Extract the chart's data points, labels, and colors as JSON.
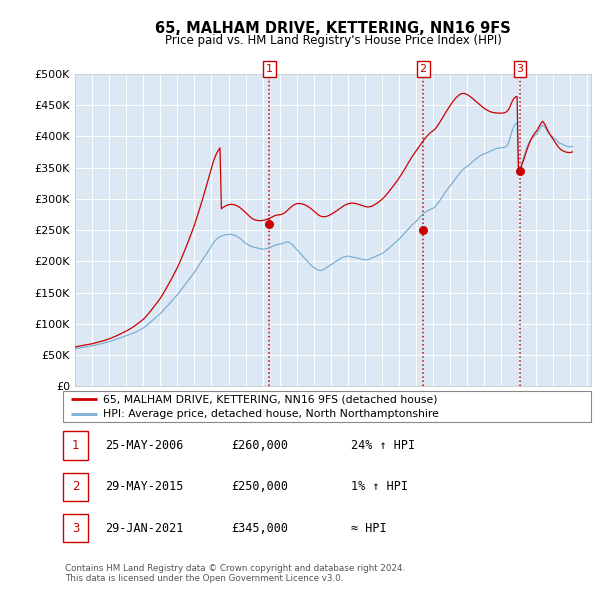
{
  "title": "65, MALHAM DRIVE, KETTERING, NN16 9FS",
  "subtitle": "Price paid vs. HM Land Registry's House Price Index (HPI)",
  "plot_bg_color": "#dce9f5",
  "ylim": [
    0,
    500000
  ],
  "yticks": [
    0,
    50000,
    100000,
    150000,
    200000,
    250000,
    300000,
    350000,
    400000,
    450000,
    500000
  ],
  "sale_dates_float": [
    2006.389,
    2015.411,
    2021.075
  ],
  "sale_prices": [
    260000,
    250000,
    345000
  ],
  "sale_labels": [
    "1",
    "2",
    "3"
  ],
  "vline_color": "#cc0000",
  "sale_color": "#cc0000",
  "hpi_color": "#7bafd4",
  "legend_sale_label": "65, MALHAM DRIVE, KETTERING, NN16 9FS (detached house)",
  "legend_hpi_label": "HPI: Average price, detached house, North Northamptonshire",
  "table_data": [
    [
      "1",
      "25-MAY-2006",
      "£260,000",
      "24% ↑ HPI"
    ],
    [
      "2",
      "29-MAY-2015",
      "£250,000",
      "1% ↑ HPI"
    ],
    [
      "3",
      "29-JAN-2021",
      "£345,000",
      "≈ HPI"
    ]
  ],
  "footer": "Contains HM Land Registry data © Crown copyright and database right 2024.\nThis data is licensed under the Open Government Licence v3.0.",
  "hpi_x": [
    1995.0,
    1995.083,
    1995.167,
    1995.25,
    1995.333,
    1995.417,
    1995.5,
    1995.583,
    1995.667,
    1995.75,
    1995.833,
    1995.917,
    1996.0,
    1996.083,
    1996.167,
    1996.25,
    1996.333,
    1996.417,
    1996.5,
    1996.583,
    1996.667,
    1996.75,
    1996.833,
    1996.917,
    1997.0,
    1997.083,
    1997.167,
    1997.25,
    1997.333,
    1997.417,
    1997.5,
    1997.583,
    1997.667,
    1997.75,
    1997.833,
    1997.917,
    1998.0,
    1998.083,
    1998.167,
    1998.25,
    1998.333,
    1998.417,
    1998.5,
    1998.583,
    1998.667,
    1998.75,
    1998.833,
    1998.917,
    1999.0,
    1999.083,
    1999.167,
    1999.25,
    1999.333,
    1999.417,
    1999.5,
    1999.583,
    1999.667,
    1999.75,
    1999.833,
    1999.917,
    2000.0,
    2000.083,
    2000.167,
    2000.25,
    2000.333,
    2000.417,
    2000.5,
    2000.583,
    2000.667,
    2000.75,
    2000.833,
    2000.917,
    2001.0,
    2001.083,
    2001.167,
    2001.25,
    2001.333,
    2001.417,
    2001.5,
    2001.583,
    2001.667,
    2001.75,
    2001.833,
    2001.917,
    2002.0,
    2002.083,
    2002.167,
    2002.25,
    2002.333,
    2002.417,
    2002.5,
    2002.583,
    2002.667,
    2002.75,
    2002.833,
    2002.917,
    2003.0,
    2003.083,
    2003.167,
    2003.25,
    2003.333,
    2003.417,
    2003.5,
    2003.583,
    2003.667,
    2003.75,
    2003.833,
    2003.917,
    2004.0,
    2004.083,
    2004.167,
    2004.25,
    2004.333,
    2004.417,
    2004.5,
    2004.583,
    2004.667,
    2004.75,
    2004.833,
    2004.917,
    2005.0,
    2005.083,
    2005.167,
    2005.25,
    2005.333,
    2005.417,
    2005.5,
    2005.583,
    2005.667,
    2005.75,
    2005.833,
    2005.917,
    2006.0,
    2006.083,
    2006.167,
    2006.25,
    2006.333,
    2006.417,
    2006.5,
    2006.583,
    2006.667,
    2006.75,
    2006.833,
    2006.917,
    2007.0,
    2007.083,
    2007.167,
    2007.25,
    2007.333,
    2007.417,
    2007.5,
    2007.583,
    2007.667,
    2007.75,
    2007.833,
    2007.917,
    2008.0,
    2008.083,
    2008.167,
    2008.25,
    2008.333,
    2008.417,
    2008.5,
    2008.583,
    2008.667,
    2008.75,
    2008.833,
    2008.917,
    2009.0,
    2009.083,
    2009.167,
    2009.25,
    2009.333,
    2009.417,
    2009.5,
    2009.583,
    2009.667,
    2009.75,
    2009.833,
    2009.917,
    2010.0,
    2010.083,
    2010.167,
    2010.25,
    2010.333,
    2010.417,
    2010.5,
    2010.583,
    2010.667,
    2010.75,
    2010.833,
    2010.917,
    2011.0,
    2011.083,
    2011.167,
    2011.25,
    2011.333,
    2011.417,
    2011.5,
    2011.583,
    2011.667,
    2011.75,
    2011.833,
    2011.917,
    2012.0,
    2012.083,
    2012.167,
    2012.25,
    2012.333,
    2012.417,
    2012.5,
    2012.583,
    2012.667,
    2012.75,
    2012.833,
    2012.917,
    2013.0,
    2013.083,
    2013.167,
    2013.25,
    2013.333,
    2013.417,
    2013.5,
    2013.583,
    2013.667,
    2013.75,
    2013.833,
    2013.917,
    2014.0,
    2014.083,
    2014.167,
    2014.25,
    2014.333,
    2014.417,
    2014.5,
    2014.583,
    2014.667,
    2014.75,
    2014.833,
    2014.917,
    2015.0,
    2015.083,
    2015.167,
    2015.25,
    2015.333,
    2015.417,
    2015.5,
    2015.583,
    2015.667,
    2015.75,
    2015.833,
    2015.917,
    2016.0,
    2016.083,
    2016.167,
    2016.25,
    2016.333,
    2016.417,
    2016.5,
    2016.583,
    2016.667,
    2016.75,
    2016.833,
    2016.917,
    2017.0,
    2017.083,
    2017.167,
    2017.25,
    2017.333,
    2017.417,
    2017.5,
    2017.583,
    2017.667,
    2017.75,
    2017.833,
    2017.917,
    2018.0,
    2018.083,
    2018.167,
    2018.25,
    2018.333,
    2018.417,
    2018.5,
    2018.583,
    2018.667,
    2018.75,
    2018.833,
    2018.917,
    2019.0,
    2019.083,
    2019.167,
    2019.25,
    2019.333,
    2019.417,
    2019.5,
    2019.583,
    2019.667,
    2019.75,
    2019.833,
    2019.917,
    2020.0,
    2020.083,
    2020.167,
    2020.25,
    2020.333,
    2020.417,
    2020.5,
    2020.583,
    2020.667,
    2020.75,
    2020.833,
    2020.917,
    2021.0,
    2021.083,
    2021.167,
    2021.25,
    2021.333,
    2021.417,
    2021.5,
    2021.583,
    2021.667,
    2021.75,
    2021.833,
    2021.917,
    2022.0,
    2022.083,
    2022.167,
    2022.25,
    2022.333,
    2022.417,
    2022.5,
    2022.583,
    2022.667,
    2022.75,
    2022.833,
    2022.917,
    2023.0,
    2023.083,
    2023.167,
    2023.25,
    2023.333,
    2023.417,
    2023.5,
    2023.583,
    2023.667,
    2023.75,
    2023.833,
    2023.917,
    2024.0,
    2024.083,
    2024.167
  ],
  "hpi_values": [
    60000,
    60500,
    61000,
    61500,
    62000,
    62300,
    62600,
    63000,
    63400,
    63800,
    64200,
    64600,
    65000,
    65500,
    66000,
    66500,
    67000,
    67500,
    68000,
    68600,
    69200,
    69800,
    70400,
    71000,
    71600,
    72300,
    73000,
    73800,
    74600,
    75400,
    76200,
    77000,
    77800,
    78600,
    79400,
    80200,
    81000,
    81800,
    82600,
    83400,
    84200,
    85000,
    86000,
    87200,
    88400,
    89600,
    90800,
    92000,
    93500,
    95000,
    96800,
    98600,
    100500,
    102500,
    104500,
    106500,
    108500,
    110500,
    112500,
    114500,
    116500,
    119000,
    121500,
    124000,
    126500,
    129000,
    131500,
    134000,
    136500,
    139000,
    141500,
    144000,
    146500,
    149500,
    152500,
    155500,
    158500,
    161500,
    164500,
    167500,
    170500,
    173500,
    176500,
    179500,
    182500,
    186000,
    189500,
    193000,
    196500,
    200000,
    203500,
    207000,
    210500,
    214000,
    217500,
    221000,
    224500,
    228000,
    231500,
    234000,
    236500,
    238000,
    239500,
    240500,
    241500,
    242000,
    242500,
    242800,
    243000,
    243200,
    243000,
    242500,
    242000,
    241000,
    240000,
    238500,
    237000,
    235000,
    233000,
    231000,
    229000,
    227500,
    226000,
    225000,
    224000,
    223000,
    222500,
    222000,
    221500,
    221000,
    220500,
    220000,
    219500,
    219500,
    220000,
    220500,
    221000,
    222000,
    223000,
    224000,
    225000,
    226000,
    226500,
    227000,
    227500,
    228000,
    228500,
    229500,
    230500,
    231000,
    231000,
    230000,
    228500,
    226500,
    224000,
    221500,
    219000,
    216500,
    214000,
    211500,
    209000,
    206500,
    204000,
    201500,
    199000,
    196500,
    194000,
    192000,
    190000,
    188500,
    187000,
    186000,
    185500,
    185500,
    186000,
    187000,
    188500,
    190000,
    191500,
    193000,
    194500,
    196000,
    197500,
    199000,
    200500,
    202000,
    203500,
    205000,
    206000,
    207000,
    207500,
    208000,
    208500,
    208000,
    207500,
    207000,
    206500,
    206000,
    205500,
    205000,
    204500,
    204000,
    203500,
    203000,
    202500,
    202500,
    203000,
    203500,
    204500,
    205500,
    206500,
    207500,
    208500,
    209500,
    210500,
    211500,
    212500,
    214000,
    215500,
    217500,
    219500,
    221500,
    223500,
    225500,
    227500,
    229500,
    231500,
    233500,
    235500,
    238000,
    240500,
    243000,
    245500,
    248000,
    250500,
    253000,
    255500,
    258000,
    260000,
    262000,
    264000,
    266500,
    269000,
    271500,
    274000,
    276000,
    278000,
    279500,
    281000,
    282000,
    283000,
    284000,
    285000,
    287000,
    289000,
    292000,
    295000,
    298500,
    302000,
    305500,
    309000,
    312000,
    315000,
    318000,
    321000,
    324000,
    327000,
    330000,
    333000,
    336000,
    339000,
    342000,
    345000,
    347000,
    349000,
    350500,
    352000,
    354000,
    356000,
    358000,
    360000,
    362000,
    364000,
    365500,
    367000,
    368500,
    370000,
    371000,
    372000,
    373000,
    374000,
    375000,
    376000,
    377000,
    378000,
    379000,
    380000,
    380500,
    381000,
    381500,
    382000,
    382000,
    382500,
    383000,
    385000,
    390000,
    397000,
    405000,
    412000,
    417000,
    420000,
    422000,
    345000,
    348000,
    355000,
    362000,
    369000,
    376000,
    383000,
    388000,
    392000,
    395000,
    398000,
    400000,
    402000,
    404000,
    408000,
    412000,
    416000,
    418000,
    416000,
    413000,
    409000,
    406000,
    403000,
    401000,
    399000,
    397000,
    395000,
    393000,
    391000,
    389000,
    388000,
    387000,
    386000,
    385000,
    384000,
    383500,
    383000,
    383500,
    384000
  ],
  "prop_values": [
    63000,
    63500,
    64000,
    64500,
    65000,
    65400,
    65800,
    66200,
    66600,
    67000,
    67400,
    67800,
    68200,
    68800,
    69400,
    70000,
    70600,
    71200,
    71800,
    72400,
    73100,
    73800,
    74500,
    75200,
    76000,
    76900,
    77800,
    78800,
    79800,
    80800,
    81800,
    82900,
    84000,
    85100,
    86200,
    87400,
    88600,
    89800,
    91100,
    92400,
    93800,
    95200,
    96800,
    98500,
    100200,
    101900,
    103600,
    105400,
    107200,
    109500,
    112000,
    114600,
    117200,
    120000,
    122800,
    125800,
    128800,
    131800,
    134800,
    137900,
    141000,
    144500,
    148000,
    152000,
    156000,
    160000,
    164000,
    168200,
    172400,
    176800,
    181200,
    185600,
    190000,
    195000,
    200200,
    205500,
    210900,
    216500,
    222000,
    227800,
    233600,
    239600,
    245700,
    251900,
    258200,
    265000,
    272000,
    279200,
    286500,
    293900,
    301400,
    309100,
    317000,
    325000,
    333000,
    341200,
    349500,
    357000,
    364000,
    369500,
    374200,
    378200,
    381500,
    284000,
    286000,
    287500,
    288800,
    289800,
    290500,
    291000,
    291200,
    291000,
    290500,
    289800,
    288800,
    287500,
    286000,
    284300,
    282400,
    280300,
    278000,
    275800,
    273500,
    271500,
    269600,
    268000,
    266800,
    266000,
    265500,
    265200,
    265100,
    265200,
    265500,
    265900,
    266500,
    267200,
    268100,
    269000,
    270100,
    271200,
    272500,
    273600,
    274000,
    274200,
    274500,
    275000,
    275800,
    277000,
    278500,
    280500,
    282800,
    285000,
    287000,
    288800,
    290200,
    291300,
    292100,
    292500,
    292600,
    292300,
    291700,
    291000,
    290100,
    288900,
    287600,
    286100,
    284400,
    282500,
    280500,
    278500,
    276500,
    274800,
    273200,
    272200,
    271600,
    271300,
    271500,
    272000,
    272800,
    273800,
    275000,
    276300,
    277700,
    279200,
    280800,
    282400,
    284100,
    285800,
    287300,
    288700,
    290000,
    291100,
    292000,
    292600,
    293000,
    293200,
    293000,
    292700,
    292200,
    291600,
    290900,
    290100,
    289300,
    288500,
    287700,
    287200,
    287000,
    287200,
    287700,
    288500,
    289500,
    290800,
    292300,
    293900,
    295600,
    297400,
    299300,
    301500,
    303800,
    306400,
    309100,
    311900,
    314800,
    317800,
    320800,
    323800,
    326900,
    330000,
    333200,
    336700,
    340300,
    344000,
    347800,
    351600,
    355500,
    359400,
    363200,
    367000,
    370300,
    373500,
    376600,
    379800,
    383100,
    386400,
    389800,
    392900,
    396000,
    398700,
    401300,
    403600,
    405700,
    407400,
    409000,
    411000,
    413500,
    416500,
    420000,
    423800,
    427600,
    431500,
    435300,
    439000,
    442500,
    446000,
    449500,
    452800,
    455900,
    458800,
    461400,
    463700,
    465700,
    467200,
    468200,
    468600,
    468400,
    467700,
    466600,
    465200,
    463600,
    461800,
    459900,
    457900,
    455900,
    453900,
    451900,
    449900,
    448000,
    446200,
    444500,
    443000,
    441700,
    440500,
    439500,
    438700,
    438100,
    437700,
    437400,
    437200,
    437100,
    437000,
    437000,
    437200,
    437600,
    438400,
    440000,
    443000,
    447500,
    453000,
    458000,
    461500,
    463000,
    463500,
    345000,
    347000,
    352000,
    358000,
    365000,
    372000,
    379000,
    385000,
    391000,
    396000,
    400000,
    403500,
    406500,
    409500,
    413500,
    417500,
    421500,
    424000,
    421000,
    417000,
    412000,
    407500,
    403500,
    400000,
    396500,
    393000,
    389500,
    386000,
    383000,
    380500,
    378500,
    377000,
    376000,
    375000,
    374500,
    374000,
    374000,
    374500,
    375000
  ]
}
